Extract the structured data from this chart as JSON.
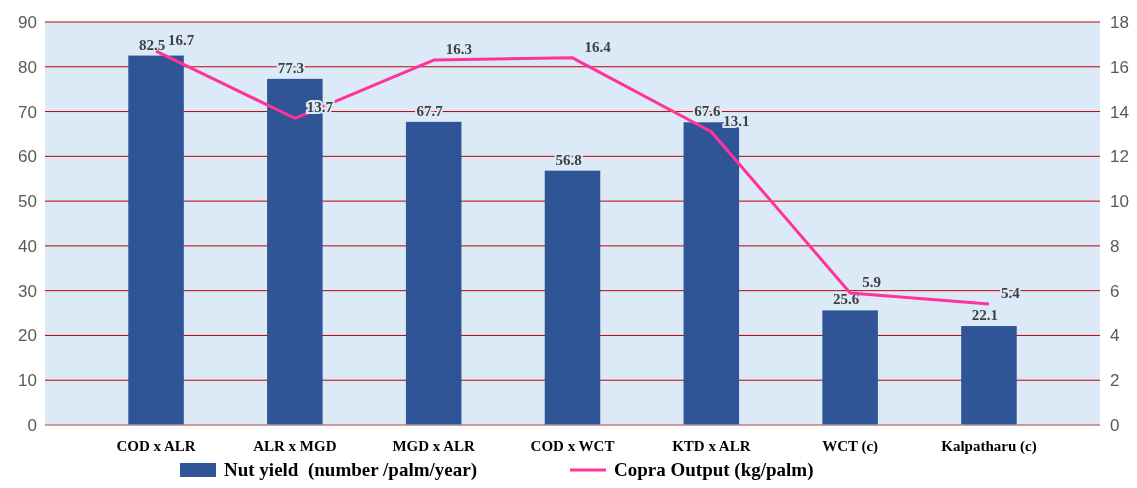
{
  "chart_data": {
    "type": "bar",
    "categories": [
      "COD x ALR",
      "ALR x MGD",
      "MGD x ALR",
      "COD x WCT",
      "KTD x ALR",
      "WCT (c)",
      "Kalpatharu (c)"
    ],
    "series": [
      {
        "name": "Nut yield  (number /palm/year)",
        "color": "#2f5597",
        "values": [
          82.5,
          77.3,
          67.7,
          56.8,
          67.6,
          25.6,
          22.1
        ]
      },
      {
        "name": "Copra Output (kg/palm)",
        "type": "line",
        "axis": "y2",
        "color": "#ff3399",
        "values": [
          16.7,
          13.7,
          16.3,
          16.4,
          13.1,
          5.9,
          5.4
        ]
      }
    ],
    "ylim": [
      0,
      90
    ],
    "yticks": [
      0,
      10,
      20,
      30,
      40,
      50,
      60,
      70,
      80,
      90
    ],
    "y2lim": [
      0,
      18
    ],
    "y2ticks": [
      0,
      2,
      4,
      6,
      8,
      10,
      12,
      14,
      16,
      18
    ],
    "grid": "y",
    "legend": "bottom",
    "data_labels": true
  }
}
